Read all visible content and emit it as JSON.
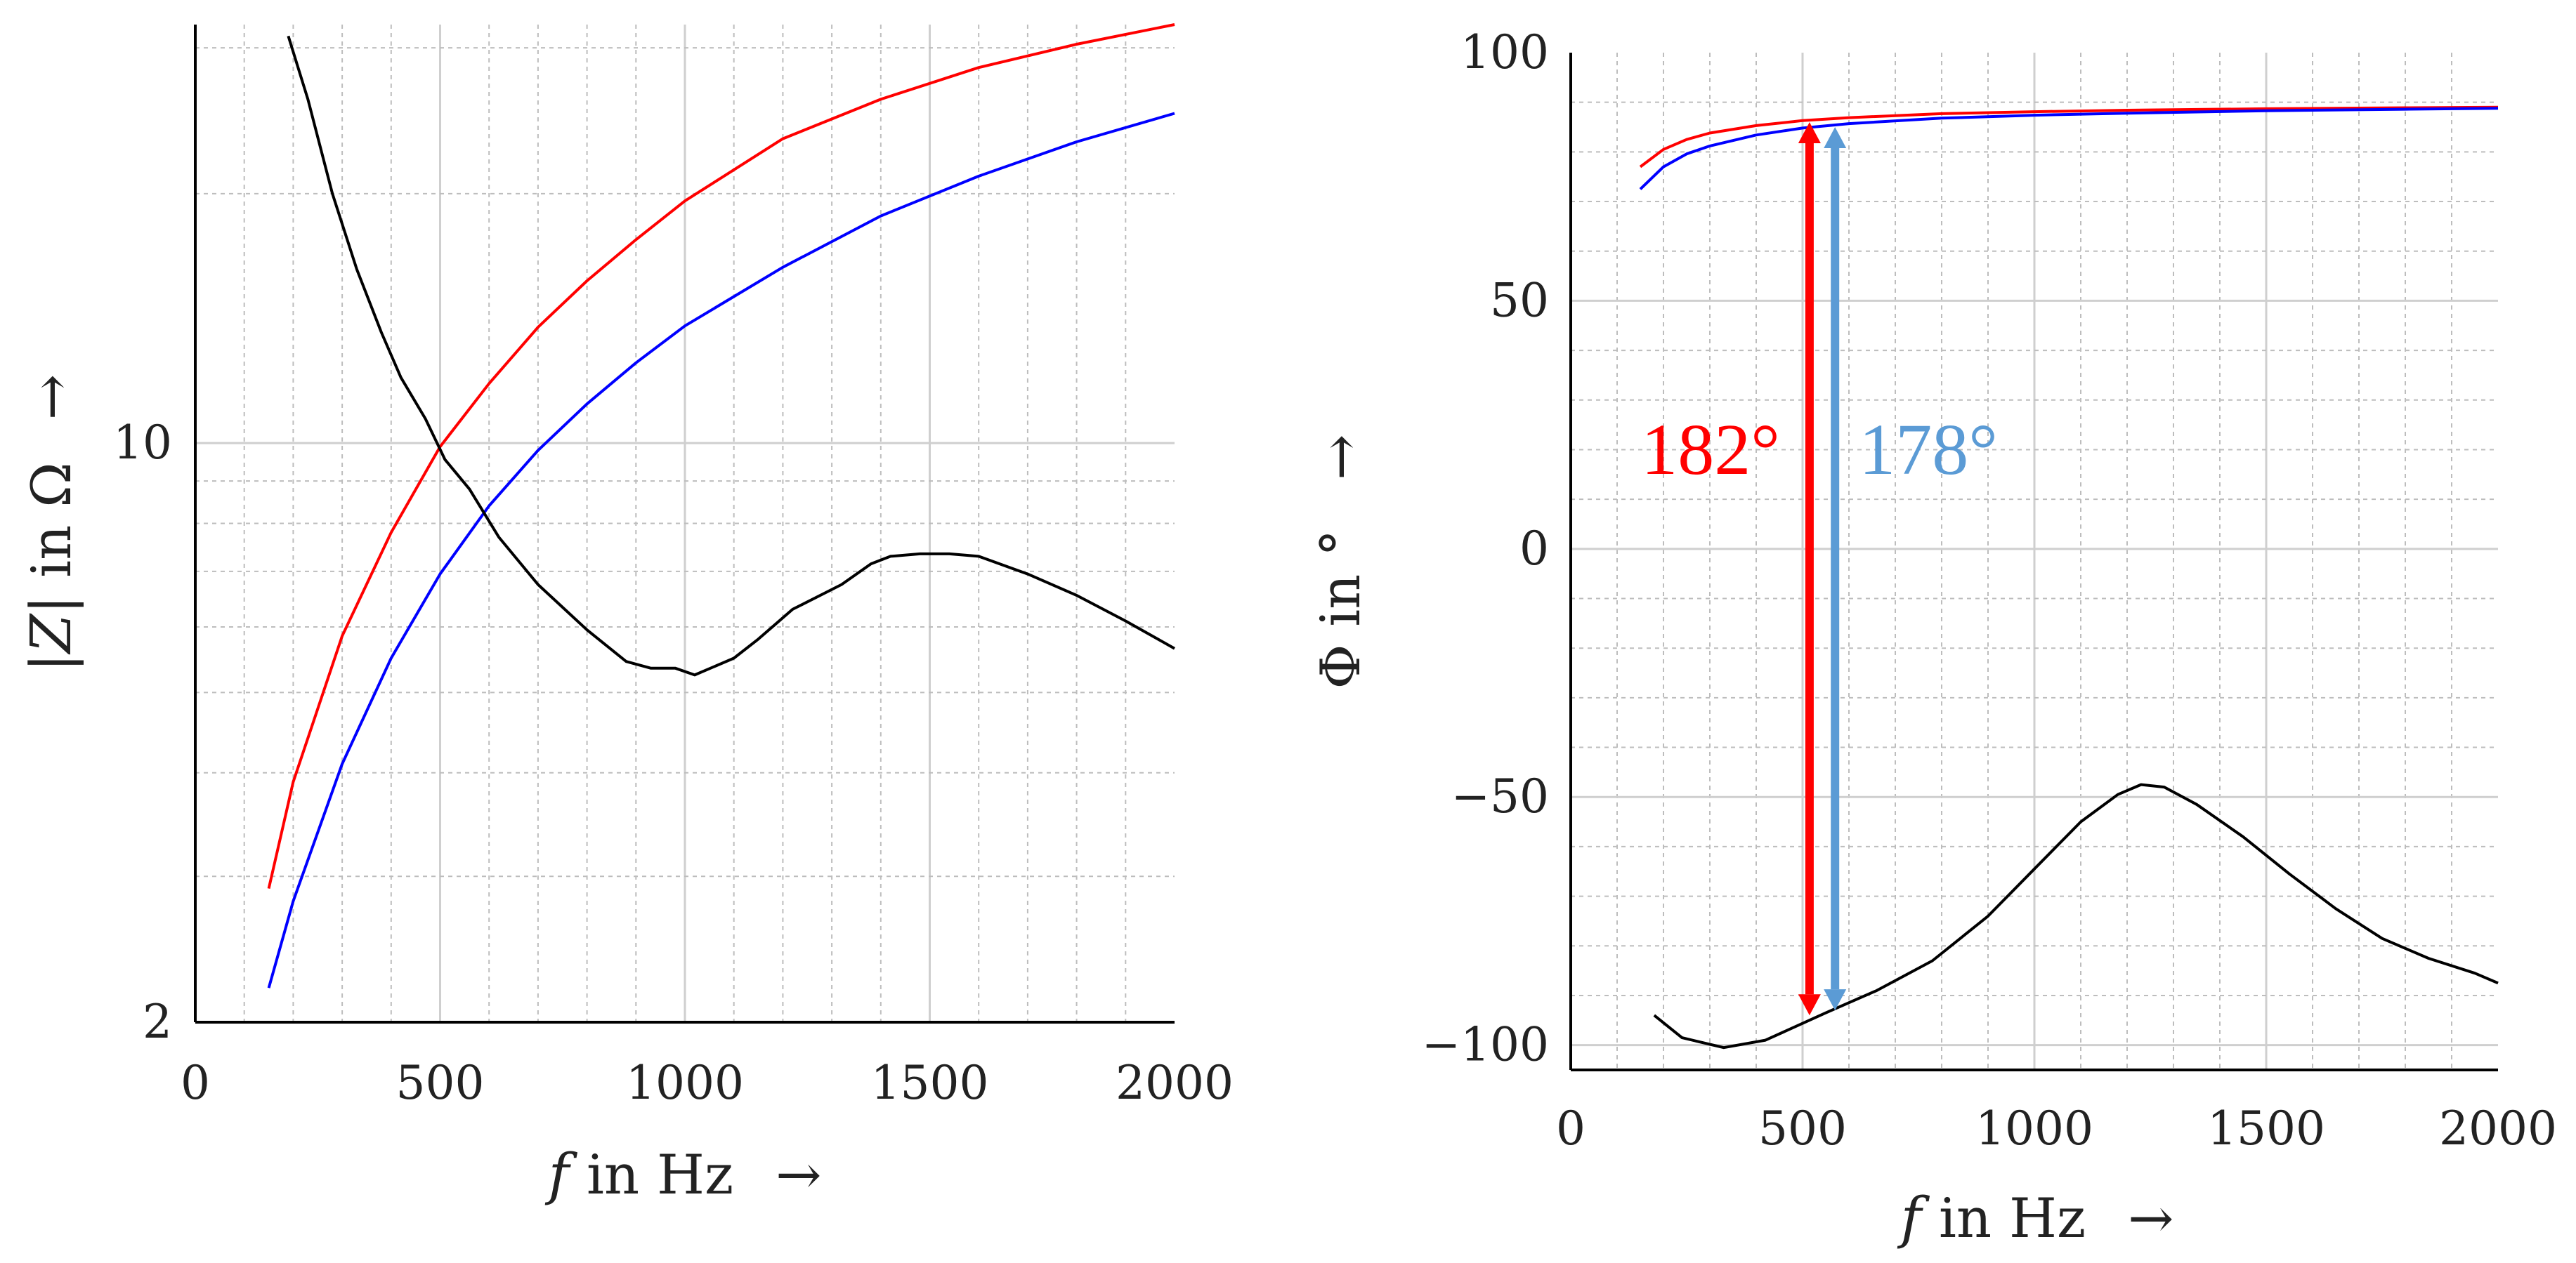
{
  "chart_data": [
    {
      "type": "line",
      "panel": "left",
      "xlabel_var": "f",
      "xlabel_rest": " in Hz",
      "xlabel_arrow": "→",
      "ylabel_var": "|Z|",
      "ylabel_rest": " in Ω",
      "ylabel_arrow": "→",
      "xlim": [
        0,
        2000
      ],
      "ylim": [
        2,
        32
      ],
      "yscale": "log",
      "xticks": [
        0,
        500,
        1000,
        1500,
        2000
      ],
      "xtick_labels": [
        "0",
        "500",
        "1000",
        "1500",
        "2000"
      ],
      "yticks": [
        2,
        10
      ],
      "ytick_labels": [
        "2",
        "10"
      ],
      "grid": true,
      "series": [
        {
          "name": "red",
          "color": "#ff0000",
          "x": [
            150,
            200,
            300,
            400,
            500,
            600,
            700,
            800,
            900,
            1000,
            1200,
            1400,
            1600,
            1800,
            2000
          ],
          "y": [
            2.9,
            3.9,
            5.85,
            7.8,
            9.9,
            11.8,
            13.8,
            15.7,
            17.6,
            19.6,
            23.3,
            26.0,
            28.4,
            30.3,
            32.0
          ]
        },
        {
          "name": "blue",
          "color": "#0000ff",
          "x": [
            150,
            200,
            300,
            400,
            500,
            600,
            700,
            800,
            900,
            1000,
            1200,
            1400,
            1600,
            1800,
            2000
          ],
          "y": [
            2.2,
            2.8,
            4.1,
            5.5,
            6.95,
            8.4,
            9.8,
            11.15,
            12.5,
            13.85,
            16.3,
            18.8,
            21.0,
            23.1,
            25.0
          ]
        },
        {
          "name": "black",
          "color": "#000000",
          "x": [
            190,
            230,
            280,
            330,
            380,
            420,
            470,
            510,
            560,
            620,
            700,
            800,
            880,
            930,
            980,
            1020,
            1100,
            1150,
            1220,
            1320,
            1380,
            1420,
            1480,
            1540,
            1600,
            1700,
            1800,
            1900,
            2000
          ],
          "y": [
            31.0,
            26.0,
            20.0,
            16.2,
            13.6,
            12.0,
            10.7,
            9.55,
            8.8,
            7.7,
            6.75,
            5.95,
            5.45,
            5.35,
            5.35,
            5.25,
            5.5,
            5.8,
            6.3,
            6.75,
            7.15,
            7.3,
            7.35,
            7.35,
            7.3,
            6.95,
            6.55,
            6.1,
            5.65
          ]
        }
      ]
    },
    {
      "type": "line",
      "panel": "right",
      "xlabel_var": "f",
      "xlabel_rest": " in Hz",
      "xlabel_arrow": "→",
      "ylabel_var": "Φ",
      "ylabel_rest": " in °",
      "ylabel_arrow": "→",
      "xlim": [
        0,
        2000
      ],
      "ylim": [
        -105,
        100
      ],
      "xticks": [
        0,
        500,
        1000,
        1500,
        2000
      ],
      "xtick_labels": [
        "0",
        "500",
        "1000",
        "1500",
        "2000"
      ],
      "yticks": [
        -100,
        -50,
        0,
        50,
        100
      ],
      "ytick_labels": [
        "−100",
        "−50",
        "0",
        "50",
        "100"
      ],
      "grid": true,
      "series": [
        {
          "name": "red",
          "color": "#ff0000",
          "x": [
            150,
            200,
            250,
            300,
            400,
            500,
            600,
            800,
            1000,
            1200,
            1500,
            1800,
            2000
          ],
          "y": [
            77,
            80.5,
            82.5,
            83.8,
            85.3,
            86.3,
            86.9,
            87.7,
            88.1,
            88.4,
            88.7,
            88.9,
            89.0
          ]
        },
        {
          "name": "blue",
          "color": "#0000ff",
          "x": [
            150,
            200,
            250,
            300,
            400,
            500,
            600,
            800,
            1000,
            1200,
            1500,
            1800,
            2000
          ],
          "y": [
            72.5,
            77,
            79.6,
            81.2,
            83.4,
            84.8,
            85.7,
            86.8,
            87.4,
            87.8,
            88.3,
            88.6,
            88.8
          ]
        },
        {
          "name": "black",
          "color": "#000000",
          "x": [
            180,
            240,
            330,
            420,
            550,
            660,
            780,
            900,
            1000,
            1100,
            1180,
            1230,
            1280,
            1350,
            1450,
            1550,
            1650,
            1750,
            1850,
            1950,
            2000
          ],
          "y": [
            -94,
            -98.5,
            -100.5,
            -99,
            -93.5,
            -89,
            -83,
            -74,
            -64.5,
            -55,
            -49.5,
            -47.5,
            -48,
            -51.5,
            -58,
            -65.5,
            -72.5,
            -78.5,
            -82.5,
            -85.5,
            -87.5
          ]
        }
      ],
      "annotations": [
        {
          "text": "182°",
          "color": "#ff0000",
          "x": 515,
          "y_top": 86,
          "y_bottom": -94
        },
        {
          "text": "178°",
          "color": "#5b9bd5",
          "x": 570,
          "y_top": 85,
          "y_bottom": -93
        }
      ]
    }
  ]
}
